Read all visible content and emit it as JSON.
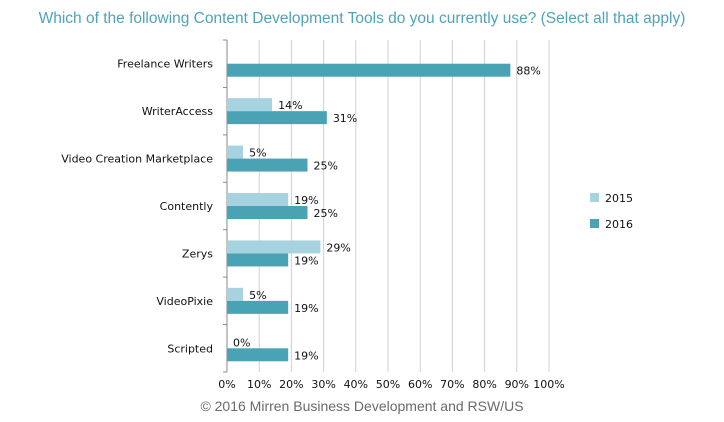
{
  "title": "Which of the following Content Development Tools do you currently use? (Select all that apply)",
  "footer": "© 2016 Mirren Business Development and RSW/US",
  "chart_data": {
    "type": "bar",
    "orientation": "horizontal",
    "categories": [
      "Freelance Writers",
      "WriterAccess",
      "Video Creation Marketplace",
      "Contently",
      "Zerys",
      "VideoPixie",
      "Scripted"
    ],
    "series": [
      {
        "name": "2015",
        "values": [
          null,
          14,
          5,
          19,
          29,
          5,
          0
        ],
        "labels": [
          "",
          "14%",
          "5%",
          "19%",
          "29%",
          "5%",
          "0%"
        ],
        "color": "#a6d3df"
      },
      {
        "name": "2016",
        "values": [
          88,
          31,
          25,
          25,
          19,
          19,
          19
        ],
        "labels": [
          "88%",
          "31%",
          "25%",
          "25%",
          "19%",
          "19%",
          "19%"
        ],
        "color": "#4aa3b5"
      }
    ],
    "xlim": [
      0,
      100
    ],
    "xticks": [
      "0%",
      "10%",
      "20%",
      "30%",
      "40%",
      "50%",
      "60%",
      "70%",
      "80%",
      "90%",
      "100%"
    ],
    "grid": true,
    "legend_position": "right"
  }
}
